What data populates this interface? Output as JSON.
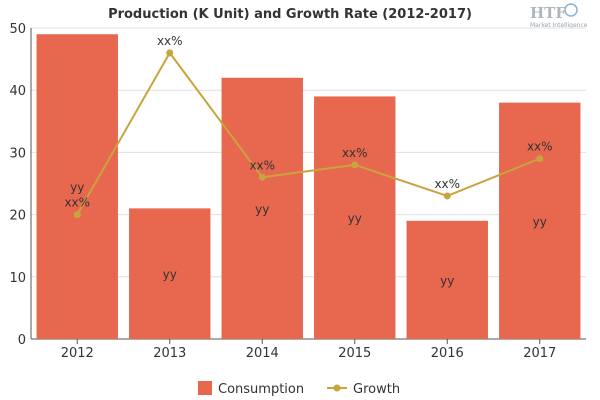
{
  "chart_data": {
    "type": "bar",
    "title": "Production (K Unit) and Growth Rate (2012-2017)",
    "categories": [
      "2012",
      "2013",
      "2014",
      "2015",
      "2016",
      "2017"
    ],
    "ylim": [
      0,
      50
    ],
    "yticks": [
      0,
      10,
      20,
      30,
      40,
      50
    ],
    "series": [
      {
        "name": "Consumption",
        "type": "bar",
        "color": "#e8674f",
        "values": [
          49,
          21,
          42,
          39,
          19,
          38
        ],
        "labels": [
          "yy",
          "yy",
          "yy",
          "yy",
          "yy",
          "yy"
        ]
      },
      {
        "name": "Growth",
        "type": "line",
        "color": "#c9a43e",
        "values": [
          20,
          46,
          26,
          28,
          23,
          29
        ],
        "labels": [
          "xx%",
          "xx%",
          "xx%",
          "xx%",
          "xx%",
          "xx%"
        ]
      }
    ],
    "grid": true,
    "legend": "bottom-center"
  },
  "logo": {
    "text": "HTF",
    "subtext": "Market Intelligence"
  }
}
